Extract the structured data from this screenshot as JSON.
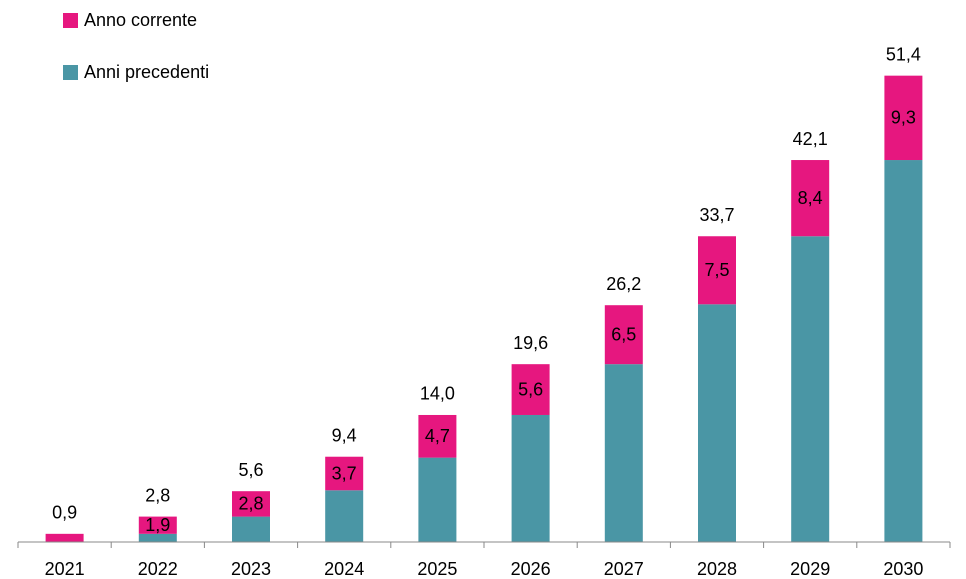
{
  "chart_data": {
    "type": "stacked-bar",
    "categories": [
      "2021",
      "2022",
      "2023",
      "2024",
      "2025",
      "2026",
      "2027",
      "2028",
      "2029",
      "2030"
    ],
    "series": [
      {
        "name": "Anni precedenti",
        "color": "#4a96a5",
        "values": [
          0,
          0.9,
          2.8,
          5.7,
          9.3,
          14.0,
          19.6,
          26.2,
          33.7,
          42.1
        ]
      },
      {
        "name": "Anno corrente",
        "color": "#e6177f",
        "values": [
          0.9,
          1.9,
          2.8,
          3.7,
          4.7,
          5.6,
          6.5,
          7.5,
          8.4,
          9.3
        ],
        "value_labels": [
          null,
          "1,9",
          "2,8",
          "3,7",
          "4,7",
          "5,6",
          "6,5",
          "7,5",
          "8,4",
          "9,3"
        ]
      }
    ],
    "total_labels": [
      "0,9",
      "2,8",
      "5,6",
      "9,4",
      "14,0",
      "19,6",
      "26,2",
      "33,7",
      "42,1",
      "51,4"
    ],
    "ylim": [
      0,
      55
    ]
  }
}
